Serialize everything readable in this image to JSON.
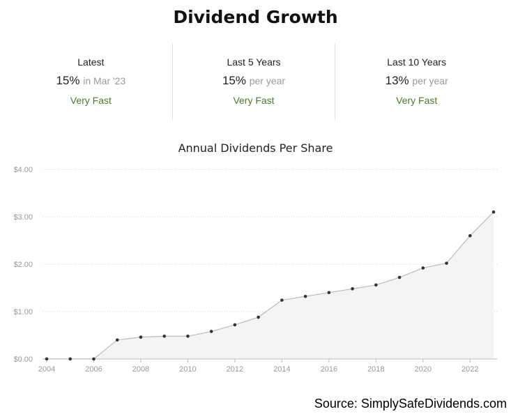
{
  "header": {
    "title": "Dividend Growth"
  },
  "stats": [
    {
      "label": "Latest",
      "value": "15%",
      "suffix": "in Mar '23",
      "rating": "Very Fast"
    },
    {
      "label": "Last 5 Years",
      "value": "15%",
      "suffix": "per year",
      "rating": "Very Fast"
    },
    {
      "label": "Last 10 Years",
      "value": "13%",
      "suffix": "per year",
      "rating": "Very Fast"
    }
  ],
  "source": "Source: SimplySafeDividends.com",
  "colors": {
    "rating": "#4e7a2c",
    "line": "#bbbbbb",
    "area": "#f4f4f4",
    "point": "#333333"
  },
  "chart_data": {
    "type": "area",
    "title": "Annual Dividends Per Share",
    "xlabel": "",
    "ylabel": "",
    "x": [
      2004,
      2005,
      2006,
      2007,
      2008,
      2009,
      2010,
      2011,
      2012,
      2013,
      2014,
      2015,
      2016,
      2017,
      2018,
      2019,
      2020,
      2021,
      2022,
      2023
    ],
    "values": [
      0,
      0,
      0,
      0.4,
      0.46,
      0.48,
      0.48,
      0.58,
      0.72,
      0.88,
      1.24,
      1.32,
      1.4,
      1.48,
      1.56,
      1.72,
      1.92,
      2.02,
      2.6,
      3.1
    ],
    "xticks": [
      2004,
      2006,
      2008,
      2010,
      2012,
      2014,
      2016,
      2018,
      2020,
      2022
    ],
    "xtick_labels": [
      "2004",
      "2006",
      "2008",
      "2010",
      "2012",
      "2014",
      "2016",
      "2018",
      "2020",
      "2022"
    ],
    "yticks": [
      0,
      1,
      2,
      3,
      4
    ],
    "ytick_labels": [
      "$0.00",
      "$1.00",
      "$2.00",
      "$3.00",
      "$4.00"
    ],
    "ylim": [
      0,
      4
    ],
    "xlim": [
      2004,
      2023
    ],
    "grid": true,
    "legend": "none"
  }
}
